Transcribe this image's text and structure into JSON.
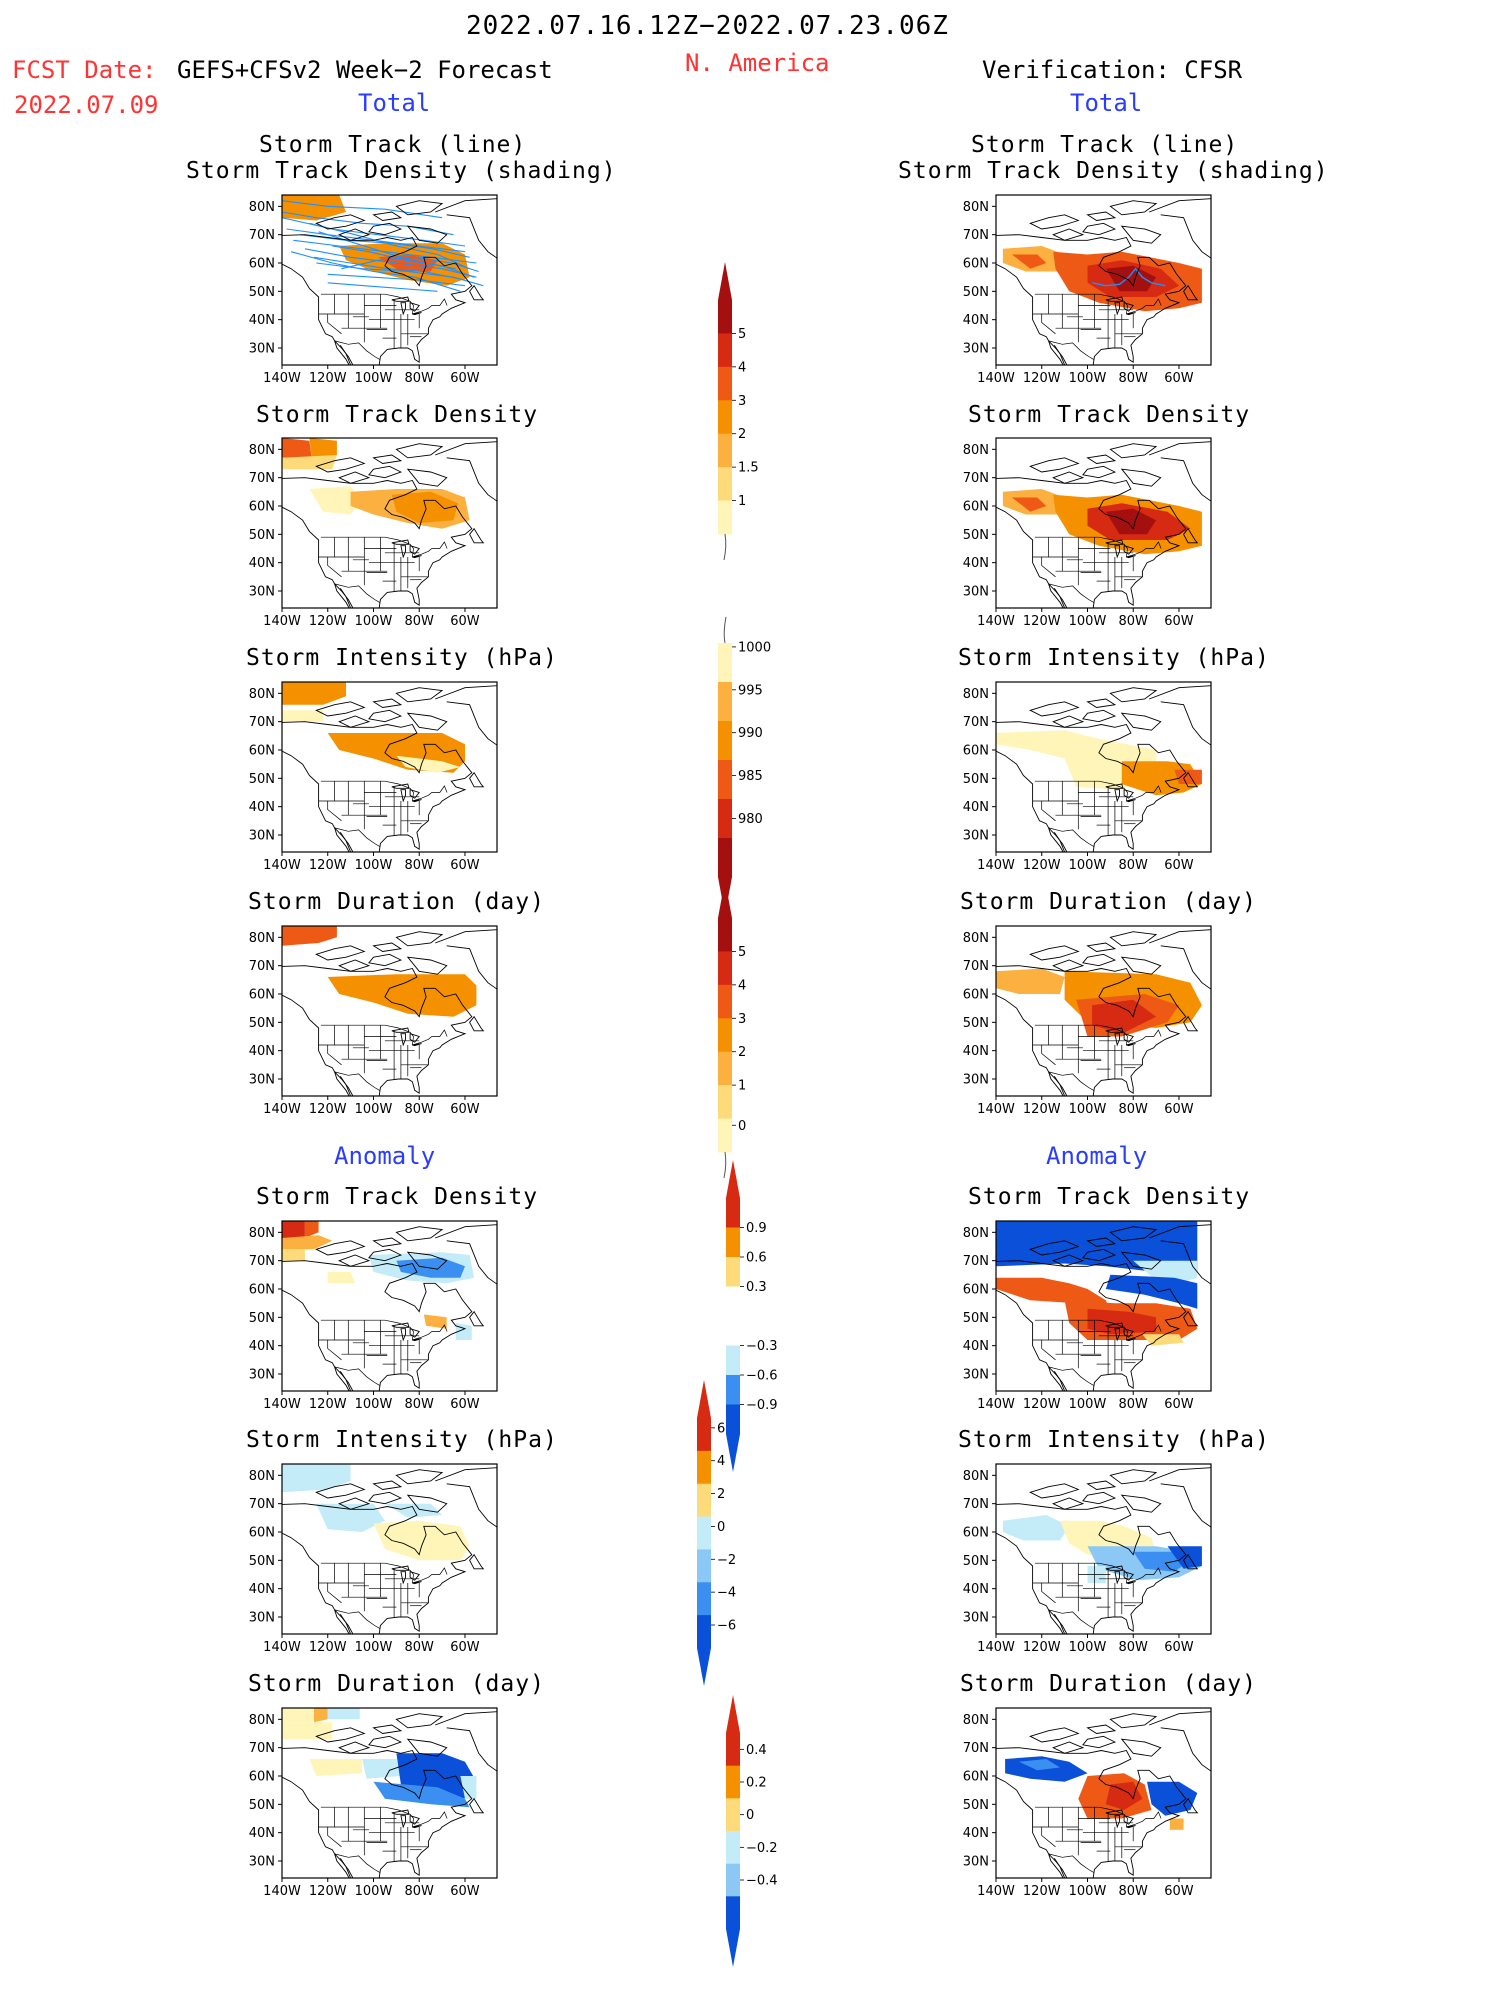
{
  "header": {
    "period": "2022.07.16.12Z−2022.07.23.06Z",
    "fcst_label": "FCST Date:",
    "fcst_model": "GEFS+CFSv2 Week−2 Forecast",
    "fcst_date": "2022.07.09",
    "region": "N. America",
    "verification": "Verification: CFSR"
  },
  "sections": {
    "total_left": "Total",
    "total_right": "Total",
    "anomaly_left": "Anomaly",
    "anomaly_right": "Anomaly"
  },
  "panel_titles": {
    "track_line": "Storm Track (line)",
    "track_shading": "Storm Track Density (shading)",
    "density": "Storm Track Density",
    "intensity": "Storm Intensity (hPa)",
    "duration": "Storm Duration (day)"
  },
  "axes": {
    "lat_labels": [
      "80N",
      "70N",
      "60N",
      "50N",
      "40N",
      "30N"
    ],
    "lon_labels": [
      "140W",
      "120W",
      "100W",
      "80W",
      "60W"
    ]
  },
  "colorbars": {
    "density": [
      "1",
      "1.5",
      "2",
      "3",
      "4",
      "5"
    ],
    "intensity": [
      "980",
      "985",
      "990",
      "995",
      "1000"
    ],
    "duration": [
      "0",
      "1",
      "2",
      "3",
      "4",
      "5"
    ],
    "anom_density": [
      "−0.9",
      "−0.6",
      "−0.3",
      "0.3",
      "0.6",
      "0.9"
    ],
    "anom_intensity": [
      "−6",
      "−4",
      "−2",
      "0",
      "2",
      "4",
      "6"
    ],
    "anom_duration": [
      "−0.4",
      "−0.2",
      "0",
      "0.2",
      "0.4"
    ]
  },
  "colors": {
    "title_red": "#ff3333",
    "section_blue": "#2a3cff",
    "warm_scale": [
      "#fff5b8",
      "#fddb7a",
      "#fbb040",
      "#f59000",
      "#ee5a16",
      "#d62a12",
      "#a4100f"
    ],
    "cool_scale": [
      "#0a50d8",
      "#3a8ff0",
      "#8cc8f6",
      "#c4ecf8"
    ],
    "track_lines": "#1e90ff"
  }
}
